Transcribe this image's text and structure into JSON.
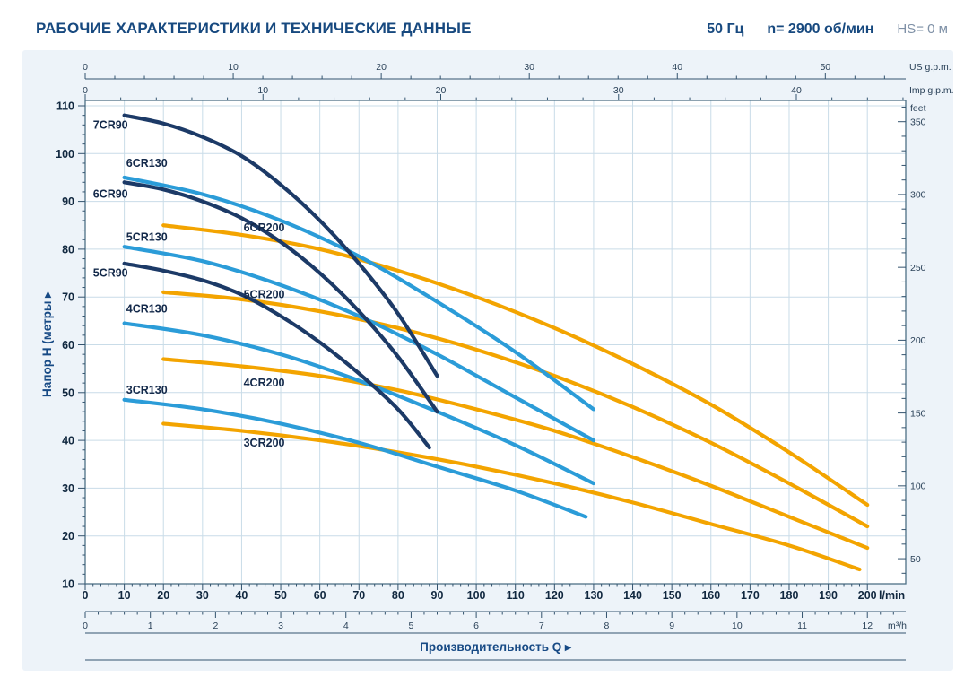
{
  "header": {
    "title": "РАБОЧИЕ ХАРАКТЕРИСТИКИ И ТЕХНИЧЕСКИЕ ДАННЫЕ",
    "frequency": "50 Гц",
    "speed": "n= 2900 об/мин",
    "suction": "HS= 0 м"
  },
  "chart_data": {
    "type": "line",
    "xlabel": "Производительность Q  ▸",
    "ylabel": "Напор H (метры  ▸",
    "xlim_lmin": [
      0,
      210
    ],
    "ylim_m": [
      10,
      110
    ],
    "grid": true,
    "colors": {
      "cr90": "#1c3a67",
      "cr130": "#2b9cd8",
      "cr200": "#f3a400",
      "grid": "#c9dce8",
      "frame": "#4d7186",
      "tick": "#33536e",
      "panel": "#edf3f9",
      "plot_bg": "#ffffff",
      "curve_label": "#13294a"
    },
    "axes": {
      "top_us_gpm": {
        "label": "US g.p.m.",
        "ticks": [
          0,
          10,
          20,
          30,
          40,
          50
        ],
        "lmin_per_unit": 3.785,
        "minor_step": 2,
        "minor_max": 54
      },
      "top_imp_gpm": {
        "label": "Imp g.p.m.",
        "ticks": [
          0,
          10,
          20,
          30,
          40
        ],
        "lmin_per_unit": 4.546,
        "minor_step": 2,
        "minor_max": 46
      },
      "right_feet": {
        "label": "feet",
        "ticks": [
          50,
          100,
          150,
          200,
          250,
          300,
          350
        ],
        "m_per_unit": 0.3048,
        "minor_step": 10,
        "minor_min": 40,
        "minor_max": 360
      },
      "left_m": {
        "ticks": [
          10,
          20,
          30,
          40,
          50,
          60,
          70,
          80,
          90,
          100,
          110
        ],
        "minor_step": 2
      },
      "bottom_lmin": {
        "unit": "l/min",
        "ticks": [
          0,
          10,
          20,
          30,
          40,
          50,
          60,
          70,
          80,
          90,
          100,
          110,
          120,
          130,
          140,
          150,
          160,
          170,
          180,
          190,
          200
        ],
        "minor_step": 2
      },
      "bottom_m3h": {
        "unit": "m³/h",
        "ticks": [
          0,
          1,
          2,
          3,
          4,
          5,
          6,
          7,
          8,
          9,
          10,
          11,
          12
        ],
        "lmin_per_unit": 16.667,
        "minor_step": 0.2,
        "minor_max": 12.4
      }
    },
    "series": [
      {
        "name": "6CR200",
        "color": "#f3a400",
        "label_q": 40.5,
        "label_h": 84.5,
        "points": [
          [
            20,
            85
          ],
          [
            40,
            83
          ],
          [
            60,
            80
          ],
          [
            80,
            75.5
          ],
          [
            100,
            70
          ],
          [
            120,
            63.5
          ],
          [
            140,
            56
          ],
          [
            160,
            47.5
          ],
          [
            180,
            37.5
          ],
          [
            200,
            26.5
          ]
        ]
      },
      {
        "name": "5CR200",
        "color": "#f3a400",
        "label_q": 40.5,
        "label_h": 70.5,
        "points": [
          [
            20,
            71
          ],
          [
            40,
            69.5
          ],
          [
            60,
            67
          ],
          [
            80,
            63.5
          ],
          [
            100,
            59
          ],
          [
            120,
            53.5
          ],
          [
            140,
            47
          ],
          [
            160,
            39.5
          ],
          [
            180,
            31
          ],
          [
            200,
            22
          ]
        ]
      },
      {
        "name": "4CR200",
        "color": "#f3a400",
        "label_q": 40.5,
        "label_h": 52,
        "points": [
          [
            20,
            57
          ],
          [
            40,
            55.5
          ],
          [
            60,
            53.5
          ],
          [
            80,
            50.5
          ],
          [
            100,
            46.5
          ],
          [
            120,
            42
          ],
          [
            140,
            36.5
          ],
          [
            160,
            30.5
          ],
          [
            180,
            24
          ],
          [
            200,
            17.5
          ]
        ]
      },
      {
        "name": "3CR200",
        "color": "#f3a400",
        "label_q": 40.5,
        "label_h": 39.5,
        "points": [
          [
            20,
            43.5
          ],
          [
            40,
            42
          ],
          [
            60,
            40
          ],
          [
            80,
            37.5
          ],
          [
            100,
            34.5
          ],
          [
            120,
            31
          ],
          [
            140,
            27
          ],
          [
            160,
            22.5
          ],
          [
            180,
            18
          ],
          [
            198,
            13
          ]
        ]
      },
      {
        "name": "6CR130",
        "color": "#2b9cd8",
        "label_q": 10.5,
        "label_h": 98,
        "points": [
          [
            10,
            95
          ],
          [
            30,
            91.5
          ],
          [
            50,
            86
          ],
          [
            70,
            78.5
          ],
          [
            90,
            69
          ],
          [
            110,
            58.5
          ],
          [
            130,
            46.5
          ]
        ]
      },
      {
        "name": "5CR130",
        "color": "#2b9cd8",
        "label_q": 10.5,
        "label_h": 82.5,
        "points": [
          [
            10,
            80.5
          ],
          [
            30,
            77.5
          ],
          [
            50,
            72.5
          ],
          [
            70,
            66
          ],
          [
            90,
            58
          ],
          [
            110,
            49
          ],
          [
            130,
            40
          ]
        ]
      },
      {
        "name": "4CR130",
        "color": "#2b9cd8",
        "label_q": 10.5,
        "label_h": 67.5,
        "points": [
          [
            10,
            64.5
          ],
          [
            30,
            62
          ],
          [
            50,
            58
          ],
          [
            70,
            52.5
          ],
          [
            90,
            46
          ],
          [
            110,
            39
          ],
          [
            130,
            31
          ]
        ]
      },
      {
        "name": "3CR130",
        "color": "#2b9cd8",
        "label_q": 10.5,
        "label_h": 50.5,
        "points": [
          [
            10,
            48.5
          ],
          [
            30,
            46.5
          ],
          [
            50,
            43.5
          ],
          [
            70,
            39.5
          ],
          [
            90,
            34.5
          ],
          [
            110,
            29.5
          ],
          [
            128,
            24
          ]
        ]
      },
      {
        "name": "7CR90",
        "color": "#1c3a67",
        "label_q": 2,
        "label_h": 106,
        "points": [
          [
            10,
            108
          ],
          [
            20,
            106.3
          ],
          [
            30,
            103.5
          ],
          [
            40,
            99.5
          ],
          [
            50,
            93.5
          ],
          [
            60,
            86
          ],
          [
            70,
            77
          ],
          [
            80,
            66.5
          ],
          [
            90,
            53.5
          ]
        ]
      },
      {
        "name": "6CR90",
        "color": "#1c3a67",
        "label_q": 2,
        "label_h": 91.5,
        "points": [
          [
            10,
            94
          ],
          [
            20,
            92.5
          ],
          [
            30,
            90
          ],
          [
            40,
            86.5
          ],
          [
            50,
            81.5
          ],
          [
            60,
            75
          ],
          [
            70,
            67
          ],
          [
            80,
            57.5
          ],
          [
            90,
            46
          ]
        ]
      },
      {
        "name": "5CR90",
        "color": "#1c3a67",
        "label_q": 2,
        "label_h": 75,
        "points": [
          [
            10,
            77
          ],
          [
            20,
            75.5
          ],
          [
            30,
            73.5
          ],
          [
            40,
            70.5
          ],
          [
            50,
            66
          ],
          [
            60,
            60.5
          ],
          [
            70,
            54
          ],
          [
            80,
            46.5
          ],
          [
            88,
            38.5
          ]
        ]
      }
    ]
  }
}
